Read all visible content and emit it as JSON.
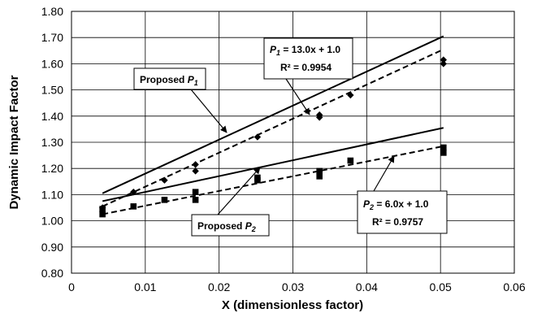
{
  "chart_data": {
    "type": "scatter",
    "xlabel": "X (dimensionless factor)",
    "ylabel": "Dynamic Impact Factor",
    "xlim": [
      0,
      0.06
    ],
    "ylim": [
      0.8,
      1.8
    ],
    "x_ticks": [
      "0",
      "0.01",
      "0.02",
      "0.03",
      "0.04",
      "0.05",
      "0.06"
    ],
    "y_ticks": [
      "0.80",
      "0.90",
      "1.00",
      "1.10",
      "1.20",
      "1.30",
      "1.40",
      "1.50",
      "1.60",
      "1.70",
      "1.80"
    ],
    "grid": true,
    "series": [
      {
        "marker": "diamond",
        "color": "#000000",
        "points": [
          [
            0.0042,
            1.05
          ],
          [
            0.0084,
            1.11
          ],
          [
            0.0126,
            1.155
          ],
          [
            0.0168,
            1.19
          ],
          [
            0.0168,
            1.215
          ],
          [
            0.0252,
            1.32
          ],
          [
            0.0336,
            1.395
          ],
          [
            0.0336,
            1.405
          ],
          [
            0.0378,
            1.48
          ],
          [
            0.0504,
            1.6
          ],
          [
            0.0504,
            1.615
          ]
        ]
      },
      {
        "marker": "square",
        "color": "#000000",
        "points": [
          [
            0.0042,
            1.025
          ],
          [
            0.0042,
            1.045
          ],
          [
            0.0084,
            1.055
          ],
          [
            0.0126,
            1.08
          ],
          [
            0.0168,
            1.08
          ],
          [
            0.0168,
            1.11
          ],
          [
            0.0252,
            1.155
          ],
          [
            0.0252,
            1.165
          ],
          [
            0.0336,
            1.17
          ],
          [
            0.0336,
            1.19
          ],
          [
            0.0378,
            1.23
          ],
          [
            0.0504,
            1.26
          ],
          [
            0.0504,
            1.28
          ]
        ]
      }
    ],
    "lines": [
      {
        "style": "solid",
        "x": [
          0.0042,
          0.0504
        ],
        "y": [
          1.105,
          1.705
        ]
      },
      {
        "style": "dashed",
        "x": [
          0.0042,
          0.0504
        ],
        "y": [
          1.055,
          1.655
        ]
      },
      {
        "style": "solid",
        "x": [
          0.0042,
          0.0504
        ],
        "y": [
          1.075,
          1.355
        ]
      },
      {
        "style": "dashed",
        "x": [
          0.0042,
          0.0504
        ],
        "y": [
          1.025,
          1.285
        ]
      }
    ],
    "annotations": {
      "proposed_p1": {
        "text": "Proposed ",
        "var": "P",
        "sub": "1"
      },
      "proposed_p2": {
        "text": "Proposed ",
        "var": "P",
        "sub": "2"
      },
      "eq_p1": {
        "var": "P",
        "sub": "1",
        "rest": " = 13.0x + 1.0",
        "r2": "R² = 0.9954"
      },
      "eq_p2": {
        "var": "P",
        "sub": "2",
        "rest": " = 6.0x + 1.0",
        "r2": "R² = 0.9757"
      }
    }
  }
}
